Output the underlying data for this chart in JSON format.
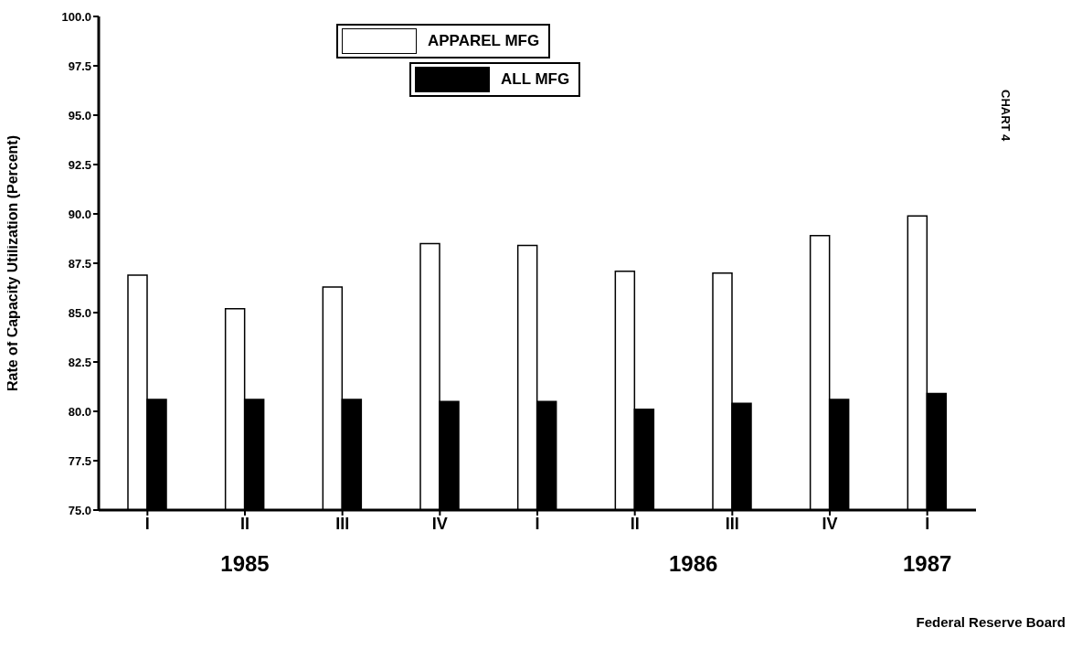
{
  "chart_data": {
    "type": "bar",
    "ylabel": "Rate of Capacity Utilization (Percent)",
    "categories": [
      "I",
      "II",
      "III",
      "IV",
      "I",
      "II",
      "III",
      "IV",
      "I"
    ],
    "series": [
      {
        "name": "APPAREL MFG",
        "color": "#ffffff",
        "values": [
          86.9,
          85.2,
          86.3,
          88.5,
          88.4,
          87.1,
          87.0,
          88.9,
          89.9
        ]
      },
      {
        "name": "ALL MFG",
        "color": "#000000",
        "values": [
          80.6,
          80.6,
          80.6,
          80.5,
          80.5,
          80.1,
          80.4,
          80.6,
          80.9
        ]
      }
    ],
    "ylim": [
      75,
      100
    ],
    "yticks": [
      {
        "value": 75,
        "label": "75.0"
      },
      {
        "value": 77.5,
        "label": "77.5"
      },
      {
        "value": 80,
        "label": "80.0"
      },
      {
        "value": 82.5,
        "label": "82.5"
      },
      {
        "value": 85,
        "label": "85.0"
      },
      {
        "value": 87.5,
        "label": "87.5"
      },
      {
        "value": 90,
        "label": "90.0"
      },
      {
        "value": 92.5,
        "label": "92.5"
      },
      {
        "value": 95,
        "label": "95.0"
      },
      {
        "value": 97.5,
        "label": "97.5"
      },
      {
        "value": 100,
        "label": "100.0"
      }
    ],
    "legend": "top",
    "annotations": [
      "1985",
      "1986",
      "1987",
      "CHART 4",
      "Federal Reserve Board"
    ]
  }
}
